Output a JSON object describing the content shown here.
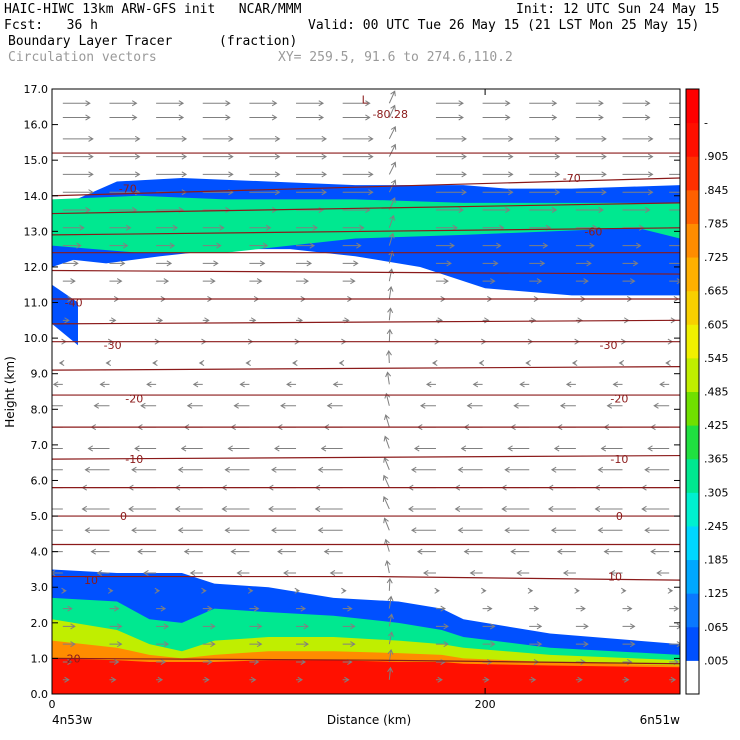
{
  "header": {
    "line1_left": "HAIC-HIWC 13km ARW-GFS init   NCAR/MMM",
    "line1_right": "Init: 12 UTC Sun 24 May 15",
    "line2_left": "Fcst:   36 h",
    "line2_right": "Valid: 00 UTC Tue 26 May 15 (21 LST Mon 25 May 15)",
    "line3_left": "Boundary Layer Tracer",
    "line3_units": "(fraction)",
    "line4_left": "Circulation vectors",
    "line4_right": "XY= 259.5, 91.6 to 274.6,110.2"
  },
  "colors": {
    "contour": "#8b1a1a",
    "vector": "#808080",
    "scale": [
      "#ffffff",
      "#0050ff",
      "#0a78ff",
      "#00a8ff",
      "#00d6ff",
      "#00f0d0",
      "#00e890",
      "#20e040",
      "#70e000",
      "#c0ee00",
      "#f0f000",
      "#f8d000",
      "#ffb000",
      "#ff8c00",
      "#ff6000",
      "#ff3000",
      "#ff1000",
      "#ff0000"
    ]
  },
  "chart_data": {
    "type": "heatmap",
    "xlabel": "Distance (km)",
    "ylabel": "Height (km)",
    "xlim": [
      0,
      290
    ],
    "ylim": [
      0,
      17
    ],
    "x_ticks": [
      {
        "value": 0,
        "label": "0"
      },
      {
        "value": 200,
        "label": "200"
      }
    ],
    "y_ticks": [
      "0.0",
      "1.0",
      "2.0",
      "3.0",
      "4.0",
      "5.0",
      "6.0",
      "7.0",
      "8.0",
      "9.0",
      "10.0",
      "11.0",
      "12.0",
      "13.0",
      "14.0",
      "15.0",
      "16.0",
      "17.0"
    ],
    "x_endpoint_labels": {
      "left": "4n53w",
      "right": "6n51w"
    },
    "colorbar_labels": [
      ".005",
      ".065",
      ".125",
      ".185",
      ".245",
      ".305",
      ".365",
      ".425",
      ".485",
      ".545",
      ".605",
      ".665",
      ".725",
      ".785",
      ".845",
      ".905",
      "-"
    ],
    "tracer_layers": [
      {
        "level": ".005",
        "regions": [
          {
            "id": "upper",
            "x": [
              0,
              30,
              60,
              100,
              140,
              170,
              190,
              210,
              240,
              290,
              290,
              240,
              200,
              180,
              170,
              140,
              110,
              80,
              50,
              25,
              10,
              0
            ],
            "top": [
              13.6,
              14.4,
              14.5,
              14.4,
              14.3,
              14.3,
              14.3,
              14.2,
              14.2,
              14.3
            ],
            "bot": [
              11.2,
              11.2,
              11.4,
              11.8,
              12.0,
              12.3,
              12.5,
              12.5,
              12.3,
              12.1,
              12.2,
              12.0
            ]
          },
          {
            "id": "left-blob",
            "x": [
              0,
              12
            ],
            "top": [
              11.5,
              11.0
            ],
            "bot": [
              9.8,
              10.4
            ]
          },
          {
            "id": "lower",
            "x": [
              0,
              30,
              45,
              60,
              75,
              100,
              130,
              160,
              180,
              190,
              230,
              290
            ],
            "top": [
              3.5,
              3.4,
              3.4,
              3.4,
              3.1,
              3.0,
              2.7,
              2.6,
              2.4,
              2.1,
              1.7,
              1.4
            ]
          }
        ]
      },
      {
        "level": ".185",
        "regions": [
          {
            "id": "upper",
            "x": [
              0,
              40,
              80,
              140,
              190,
              230,
              270,
              290
            ],
            "top": [
              13.9,
              14.0,
              13.9,
              13.9,
              13.8,
              13.8,
              13.8,
              13.8
            ],
            "bot": [
              12.8,
              13.1,
              13.0,
              12.9,
              12.8,
              12.4,
              12.4,
              12.6
            ]
          },
          {
            "id": "lower",
            "x": [
              0,
              30,
              45,
              60,
              75,
              100,
              130,
              160,
              180,
              190,
              230,
              290
            ],
            "top": [
              2.7,
              2.6,
              2.1,
              2.0,
              2.4,
              2.3,
              2.2,
              2.0,
              1.8,
              1.6,
              1.3,
              1.1
            ]
          }
        ]
      },
      {
        "level": ".425",
        "regions": [
          {
            "id": "lower",
            "x": [
              0,
              30,
              45,
              60,
              75,
              100,
              130,
              160,
              180,
              190,
              230,
              290
            ],
            "top": [
              2.1,
              1.8,
              1.4,
              1.2,
              1.5,
              1.6,
              1.6,
              1.5,
              1.4,
              1.3,
              1.1,
              0.95
            ]
          }
        ]
      },
      {
        "level": ".725",
        "regions": [
          {
            "id": "lower",
            "x": [
              0,
              30,
              45,
              60,
              75,
              100,
              130,
              160,
              180,
              190,
              230,
              290
            ],
            "top": [
              1.5,
              1.3,
              1.1,
              1.0,
              1.1,
              1.2,
              1.2,
              1.15,
              1.1,
              1.0,
              0.9,
              0.8
            ]
          }
        ]
      },
      {
        "level": ".905",
        "regions": [
          {
            "id": "lower",
            "x": [
              0,
              30,
              45,
              60,
              75,
              100,
              130,
              160,
              180,
              190,
              230,
              290
            ],
            "top": [
              1.0,
              0.95,
              0.9,
              0.9,
              0.9,
              0.95,
              0.95,
              0.9,
              0.9,
              0.85,
              0.8,
              0.75
            ]
          }
        ]
      }
    ],
    "temperature_contours": [
      {
        "label": "20",
        "label_x": 10,
        "label_y": 1.0,
        "points": [
          [
            0,
            1.0
          ],
          [
            150,
            0.95
          ],
          [
            290,
            0.85
          ]
        ]
      },
      {
        "label": "10",
        "label_x": 18,
        "label_y": 3.2,
        "points": [
          [
            0,
            3.3
          ],
          [
            150,
            3.3
          ],
          [
            290,
            3.2
          ]
        ]
      },
      {
        "label": "10",
        "label_x": 260,
        "label_y": 3.3,
        "points": []
      },
      {
        "label": "",
        "points": [
          [
            0,
            4.2
          ],
          [
            290,
            4.2
          ]
        ]
      },
      {
        "label": "0",
        "label_x": 33,
        "label_y": 5.0,
        "points": [
          [
            0,
            5.0
          ],
          [
            290,
            5.0
          ]
        ]
      },
      {
        "label": "0",
        "label_x": 262,
        "label_y": 5.0,
        "points": []
      },
      {
        "label": "",
        "points": [
          [
            0,
            5.8
          ],
          [
            290,
            5.8
          ]
        ]
      },
      {
        "label": "-10",
        "label_x": 38,
        "label_y": 6.6,
        "points": [
          [
            0,
            6.6
          ],
          [
            290,
            6.7
          ]
        ]
      },
      {
        "label": "-10",
        "label_x": 262,
        "label_y": 6.6,
        "points": []
      },
      {
        "label": "",
        "points": [
          [
            0,
            7.5
          ],
          [
            290,
            7.5
          ]
        ]
      },
      {
        "label": "-20",
        "label_x": 38,
        "label_y": 8.3,
        "points": [
          [
            0,
            8.4
          ],
          [
            290,
            8.4
          ]
        ]
      },
      {
        "label": "-20",
        "label_x": 262,
        "label_y": 8.3,
        "points": []
      },
      {
        "label": "",
        "points": [
          [
            0,
            9.1
          ],
          [
            290,
            9.2
          ]
        ]
      },
      {
        "label": "-30",
        "label_x": 28,
        "label_y": 9.8,
        "points": [
          [
            0,
            9.9
          ],
          [
            290,
            9.9
          ]
        ]
      },
      {
        "label": "-30",
        "label_x": 257,
        "label_y": 9.8,
        "points": []
      },
      {
        "label": "",
        "points": [
          [
            0,
            10.4
          ],
          [
            290,
            10.5
          ]
        ]
      },
      {
        "label": "-40",
        "label_x": 10,
        "label_y": 11.0,
        "points": [
          [
            0,
            11.1
          ],
          [
            290,
            11.1
          ]
        ]
      },
      {
        "label": "",
        "points": [
          [
            0,
            11.9
          ],
          [
            290,
            11.8
          ]
        ]
      },
      {
        "label": "",
        "points": [
          [
            0,
            12.4
          ],
          [
            290,
            12.4
          ]
        ]
      },
      {
        "label": "-60",
        "label_x": 250,
        "label_y": 13.0,
        "points": [
          [
            0,
            12.9
          ],
          [
            290,
            13.1
          ]
        ]
      },
      {
        "label": "",
        "points": [
          [
            0,
            13.5
          ],
          [
            290,
            13.8
          ]
        ]
      },
      {
        "label": "-70",
        "label_x": 35,
        "label_y": 14.2,
        "points": [
          [
            0,
            14.0
          ],
          [
            290,
            14.5
          ]
        ]
      },
      {
        "label": "-70",
        "label_x": 240,
        "label_y": 14.5,
        "points": []
      },
      {
        "label": "",
        "points": [
          [
            0,
            15.2
          ],
          [
            290,
            15.2
          ]
        ]
      }
    ],
    "annotations": [
      {
        "text": "L",
        "x": 143,
        "y": 16.7
      },
      {
        "text": "-80.28",
        "x": 148,
        "y": 16.3
      }
    ],
    "vector_field": {
      "nx": 14,
      "levels": [
        0.4,
        0.9,
        1.4,
        1.9,
        2.4,
        2.9,
        3.4,
        4.0,
        4.6,
        5.2,
        5.8,
        6.3,
        6.9,
        7.5,
        8.1,
        8.7,
        9.3,
        9.9,
        10.5,
        11.1,
        11.6,
        12.1,
        12.6,
        13.1,
        13.6,
        14.1,
        14.6,
        15.1,
        15.6,
        16.2,
        16.6
      ],
      "u": [
        0.2,
        0.3,
        0.4,
        0.4,
        0.3,
        0.1,
        -0.4,
        -0.6,
        -0.8,
        -0.9,
        -0.9,
        -0.8,
        -0.7,
        -0.6,
        -0.5,
        -0.3,
        -0.1,
        0.1,
        0.2,
        0.3,
        0.4,
        0.5,
        0.6,
        0.7,
        0.9,
        1.0,
        1.0,
        1.0,
        1.0,
        0.9,
        0.9
      ],
      "w_column_x": 148
    }
  }
}
